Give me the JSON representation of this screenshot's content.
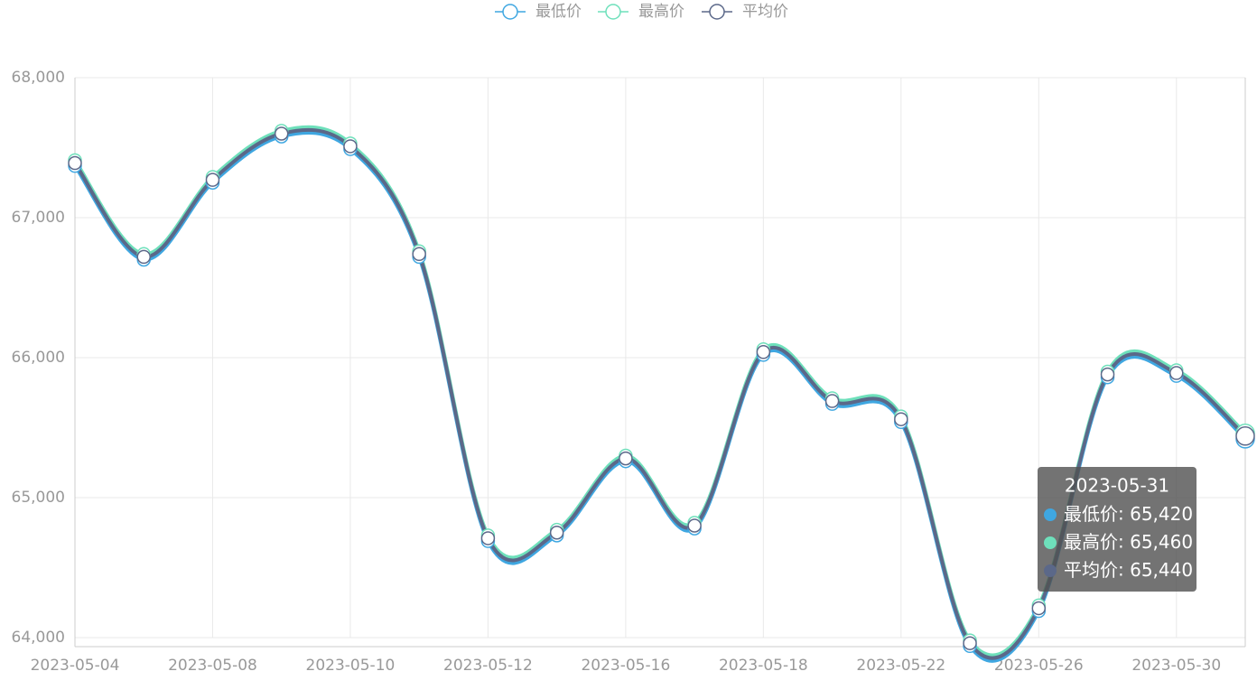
{
  "chart_data": {
    "type": "line",
    "categories": [
      "2023-05-04",
      null,
      "2023-05-08",
      null,
      "2023-05-10",
      null,
      "2023-05-12",
      null,
      "2023-05-16",
      null,
      "2023-05-18",
      null,
      "2023-05-22",
      null,
      "2023-05-26",
      null,
      "2023-05-30",
      "2023-05-31"
    ],
    "series": [
      {
        "name": "最低价",
        "color": "#3fa7e1",
        "values": [
          67370,
          66700,
          67250,
          67580,
          67490,
          66720,
          64690,
          64730,
          65260,
          64780,
          66020,
          65670,
          65540,
          63940,
          64190,
          65860,
          65870,
          65420
        ],
        "value_labels": [
          null,
          null,
          null,
          null,
          null,
          null,
          null,
          null,
          null,
          null,
          null,
          null,
          null,
          null,
          null,
          null,
          null,
          "65,420"
        ]
      },
      {
        "name": "最高价",
        "color": "#6ee0bb",
        "values": [
          67410,
          66740,
          67290,
          67620,
          67530,
          66760,
          64730,
          64770,
          65300,
          64820,
          66060,
          65710,
          65580,
          63980,
          64230,
          65900,
          65910,
          65460
        ],
        "value_labels": [
          null,
          null,
          null,
          null,
          null,
          null,
          null,
          null,
          null,
          null,
          null,
          null,
          null,
          null,
          null,
          null,
          null,
          "65,460"
        ]
      },
      {
        "name": "平均价",
        "color": "#5b6889",
        "values": [
          67390,
          66720,
          67270,
          67600,
          67510,
          66740,
          64710,
          64750,
          65280,
          64800,
          66040,
          65690,
          65560,
          63960,
          64210,
          65880,
          65890,
          65440
        ],
        "value_labels": [
          null,
          null,
          null,
          null,
          null,
          null,
          null,
          null,
          null,
          null,
          null,
          null,
          null,
          null,
          null,
          null,
          null,
          "65,440"
        ]
      }
    ],
    "ylim": [
      64000,
      68000
    ],
    "yticks": [
      {
        "value": 64000,
        "label": "64,000"
      },
      {
        "value": 65000,
        "label": "65,000"
      },
      {
        "value": 66000,
        "label": "66,000"
      },
      {
        "value": 67000,
        "label": "67,000"
      },
      {
        "value": 68000,
        "label": "68,000"
      }
    ],
    "grid": true,
    "smooth": true,
    "legend": "top"
  }
}
